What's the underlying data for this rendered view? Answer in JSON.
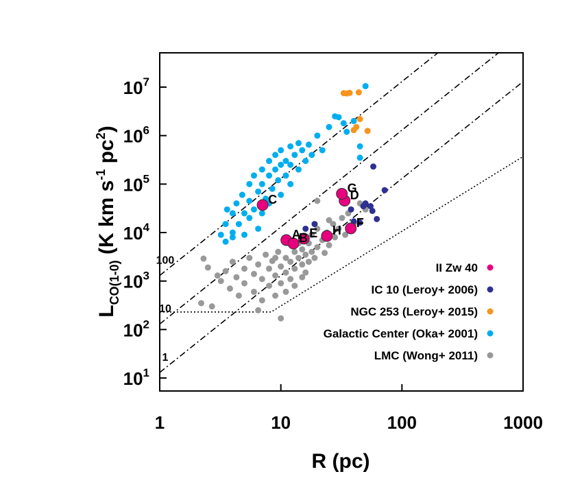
{
  "chart_data": {
    "type": "scatter",
    "xlabel": "R (pc)",
    "ylabel": [
      "L",
      "CO(1-0)",
      " (K km s",
      "-1",
      " pc",
      "2",
      ")"
    ],
    "log_x": true,
    "log_y": true,
    "xlim": [
      1,
      1000
    ],
    "ylim": [
      5.4,
      51000000
    ],
    "xticks": [
      1,
      10,
      100,
      1000
    ],
    "yticks": [
      {
        "value": 10,
        "label": [
          "10",
          "1"
        ]
      },
      {
        "value": 100,
        "label": [
          "10",
          "2"
        ]
      },
      {
        "value": 1000,
        "label": [
          "10",
          "3"
        ]
      },
      {
        "value": 10000,
        "label": [
          "10",
          "4"
        ]
      },
      {
        "value": 100000,
        "label": [
          "10",
          "5"
        ]
      },
      {
        "value": 1000000,
        "label": [
          "10",
          "6"
        ]
      },
      {
        "value": 10000000,
        "label": [
          "10",
          "7"
        ]
      }
    ],
    "reference_lines": [
      {
        "label": "100",
        "style": "dashdot",
        "x": [
          1,
          1000
        ],
        "values": [
          1300,
          1300000000
        ]
      },
      {
        "label": "10",
        "style": "dashdot",
        "x": [
          1,
          1000
        ],
        "values": [
          130,
          130000000
        ]
      },
      {
        "label": "1",
        "style": "dashdot",
        "x": [
          1,
          1000
        ],
        "values": [
          13,
          13000000
        ]
      },
      {
        "style": "dotted",
        "x": [
          1,
          8.3,
          1000
        ],
        "values": [
          230,
          230,
          370000
        ]
      }
    ],
    "series": [
      {
        "name": "II Zw 40",
        "color": "#e8007f",
        "x": [
          11.1,
          12.7,
          7.07,
          33.6,
          15.5,
          37.8,
          31.9,
          24
        ],
        "values": [
          7000,
          5940,
          37000,
          45500,
          7500,
          12200,
          63000,
          8500
        ],
        "point_labels": [
          "A",
          "B",
          "C",
          "D",
          "E",
          "F",
          "G",
          "H"
        ]
      },
      {
        "name": "IC 10 (Leroy+ 2006)",
        "color": "#2e3192",
        "x": [
          58,
          72,
          48,
          57,
          62,
          40,
          45,
          16,
          19,
          38,
          50,
          55
        ],
        "values": [
          230000,
          75000,
          35000,
          28000,
          19000,
          17000,
          16000,
          12000,
          15000,
          30000,
          40000,
          35000
        ]
      },
      {
        "name": "NGC 253 (Leroy+ 2015)",
        "color": "#f7941d",
        "x": [
          33,
          37,
          44,
          35,
          45,
          40,
          52,
          42
        ],
        "values": [
          7500000,
          7600000,
          7800000,
          7400000,
          2200000,
          1300000,
          1250000,
          1500000
        ]
      },
      {
        "name": "Galactic Center (Oka+ 2001)",
        "color": "#00aeef",
        "x": [
          3.2,
          3.5,
          3.5,
          4,
          4,
          4.3,
          4.5,
          4.8,
          5,
          5,
          5.5,
          5.5,
          6,
          6,
          6.5,
          6.5,
          7,
          7,
          7.5,
          8,
          8,
          8.5,
          9,
          9,
          9.5,
          10,
          10,
          11,
          11,
          12,
          12,
          13,
          14,
          14,
          15,
          16,
          17,
          18,
          20,
          22,
          25,
          28,
          30,
          33,
          35,
          40,
          45,
          50,
          45,
          5.5,
          4,
          3.6,
          8,
          7,
          10,
          12
        ],
        "values": [
          9000,
          15000,
          6500,
          25000,
          10000,
          40000,
          15000,
          60000,
          25000,
          9000,
          100000,
          45000,
          30000,
          150000,
          70000,
          12000,
          200000,
          100000,
          50000,
          300000,
          150000,
          80000,
          400000,
          200000,
          120000,
          500000,
          60000,
          300000,
          150000,
          600000,
          250000,
          400000,
          700000,
          200000,
          500000,
          300000,
          650000,
          400000,
          1000000,
          500000,
          1500000,
          2500000,
          2400000,
          1800000,
          1200000,
          2000000,
          600000,
          10500000,
          350000,
          20000,
          8000,
          30000,
          40000,
          25000,
          250000,
          100000
        ]
      },
      {
        "name": "LMC (Wong+ 2011)",
        "color": "#999999",
        "x": [
          2.3,
          2.5,
          2.2,
          2.7,
          3,
          3.2,
          3.5,
          3.8,
          4,
          4.3,
          4.5,
          5,
          5,
          5.5,
          6,
          6,
          6.5,
          7,
          7,
          7.5,
          8,
          8,
          8.5,
          9,
          9,
          9.5,
          10,
          10,
          10,
          11,
          11,
          12,
          12,
          13,
          13,
          14,
          14,
          15,
          15,
          16,
          17,
          17,
          18,
          18,
          20,
          20,
          22,
          24,
          25,
          27,
          28,
          30,
          32,
          34,
          36,
          40,
          45,
          50,
          20,
          25,
          16,
          13,
          19,
          23,
          11,
          6.5,
          15,
          9,
          12
        ],
        "values": [
          2900,
          1900,
          350,
          300,
          1300,
          1000,
          1600,
          700,
          2500,
          1200,
          500,
          1800,
          900,
          3000,
          1400,
          600,
          2200,
          1100,
          400,
          3500,
          1800,
          800,
          2600,
          1300,
          500,
          4000,
          170,
          2000,
          900,
          3000,
          1500,
          2500,
          1100,
          4000,
          1800,
          3000,
          6000,
          2200,
          4500,
          3500,
          6000,
          2500,
          9000,
          4000,
          5000,
          12000,
          7000,
          10000,
          5500,
          15000,
          8000,
          12000,
          20000,
          9000,
          25000,
          15000,
          40000,
          30000,
          45000,
          18000,
          1500,
          800,
          3000,
          3800,
          600,
          250,
          1200,
          3000,
          7000
        ]
      }
    ]
  }
}
